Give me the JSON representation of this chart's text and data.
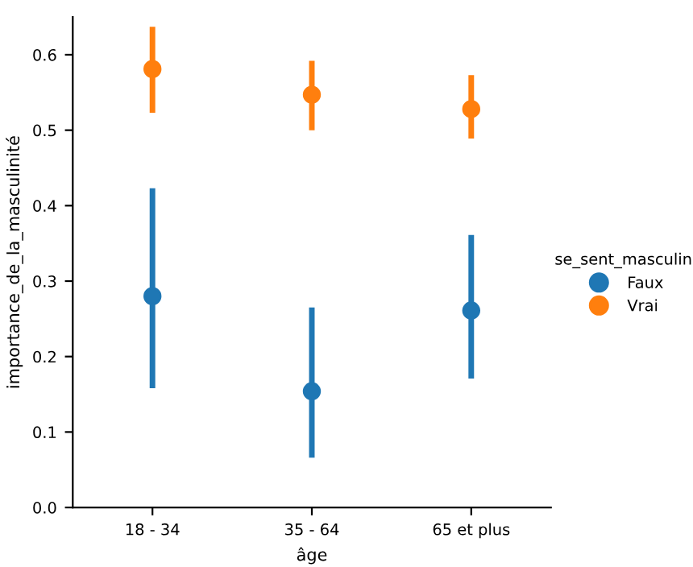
{
  "chart_data": {
    "type": "scatter",
    "xlabel": "âge",
    "ylabel": "importance_de_la_masculinité",
    "legend_title": "se_sent_masculin",
    "legend": "right",
    "marker": "circle",
    "grid": false,
    "categories": [
      "18 - 34",
      "35 - 64",
      "65 et plus"
    ],
    "ylim": [
      0,
      0.65
    ],
    "yticks": [
      {
        "value": 0,
        "label": "0.0"
      },
      0.1,
      0.2,
      0.3,
      0.4,
      0.5,
      0.6
    ],
    "series": [
      {
        "name": "Faux",
        "color": "#1f77b4",
        "values": [
          0.28,
          0.154,
          0.261
        ],
        "errors": [
          [
            0.158,
            0.423
          ],
          [
            0.066,
            0.265
          ],
          [
            0.171,
            0.361
          ]
        ]
      },
      {
        "name": "Vrai",
        "color": "#ff7f0e",
        "values": [
          0.581,
          0.547,
          0.528
        ],
        "errors": [
          [
            0.523,
            0.637
          ],
          [
            0.5,
            0.592
          ],
          [
            0.489,
            0.573
          ]
        ]
      }
    ]
  }
}
